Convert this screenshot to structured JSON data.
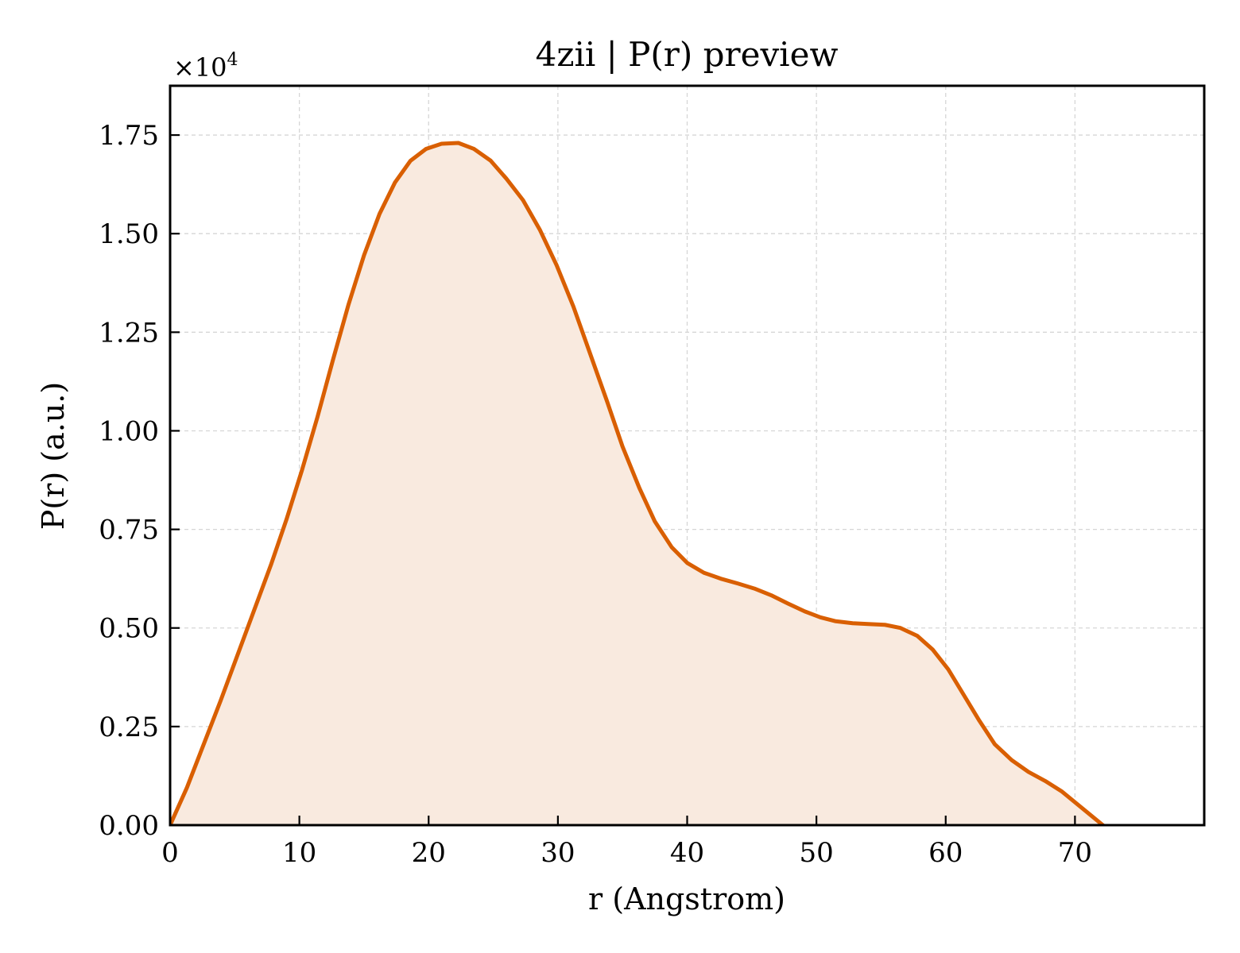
{
  "chart_data": {
    "type": "area",
    "title": "4zii | P(r) preview",
    "xlabel": "r (Angstrom)",
    "ylabel": "P(r) (a.u.)",
    "y_multiplier_label": "×10",
    "y_multiplier_exponent": "4",
    "xlim": [
      0,
      80
    ],
    "ylim": [
      0,
      1.875
    ],
    "xticks": [
      0,
      10,
      20,
      30,
      40,
      50,
      60,
      70
    ],
    "xtick_labels": [
      "0",
      "10",
      "20",
      "30",
      "40",
      "50",
      "60",
      "70"
    ],
    "yticks": [
      0,
      0.25,
      0.5,
      0.75,
      1.0,
      1.25,
      1.5,
      1.75
    ],
    "ytick_labels": [
      "0.00",
      "0.25",
      "0.50",
      "0.75",
      "1.00",
      "1.25",
      "1.50",
      "1.75"
    ],
    "grid": true,
    "line_color": "#d95f02",
    "fill_color": "#f9eadf",
    "series": [
      {
        "x": [
          0,
          1.3,
          2.6,
          3.9,
          5.2,
          6.5,
          7.8,
          9.0,
          10.2,
          11.4,
          12.6,
          13.8,
          15.0,
          16.2,
          17.4,
          18.6,
          19.8,
          21.0,
          22.3,
          23.5,
          24.8,
          26.0,
          27.3,
          28.6,
          29.9,
          31.2,
          32.5,
          33.8,
          35.0,
          36.3,
          37.5,
          38.8,
          40.0,
          41.3,
          42.6,
          43.9,
          45.2,
          46.5,
          47.8,
          49.1,
          50.3,
          51.5,
          52.8,
          54.0,
          55.3,
          56.5,
          57.8,
          59.0,
          60.2,
          61.4,
          62.6,
          63.8,
          65.1,
          66.4,
          67.7,
          69.0,
          70.3,
          71.6,
          72.9,
          74.1,
          75.4,
          76.6,
          77.8,
          79.0,
          80.0
        ],
        "y": [
          0.0,
          0.095,
          0.205,
          0.315,
          0.43,
          0.545,
          0.66,
          0.775,
          0.9,
          1.035,
          1.18,
          1.32,
          1.445,
          1.55,
          1.63,
          1.685,
          1.715,
          1.728,
          1.73,
          1.715,
          1.685,
          1.64,
          1.585,
          1.51,
          1.42,
          1.315,
          1.195,
          1.075,
          0.96,
          0.855,
          0.77,
          0.705,
          0.665,
          0.64,
          0.625,
          0.613,
          0.6,
          0.583,
          0.562,
          0.542,
          0.527,
          0.517,
          0.512,
          0.51,
          0.508,
          0.5,
          0.48,
          0.445,
          0.395,
          0.33,
          0.265,
          0.205,
          0.165,
          0.135,
          0.112,
          0.085,
          0.05,
          0.015,
          -0.02,
          -0.055,
          -0.075,
          -0.08,
          -0.075,
          -0.075,
          -0.085
        ]
      }
    ]
  }
}
